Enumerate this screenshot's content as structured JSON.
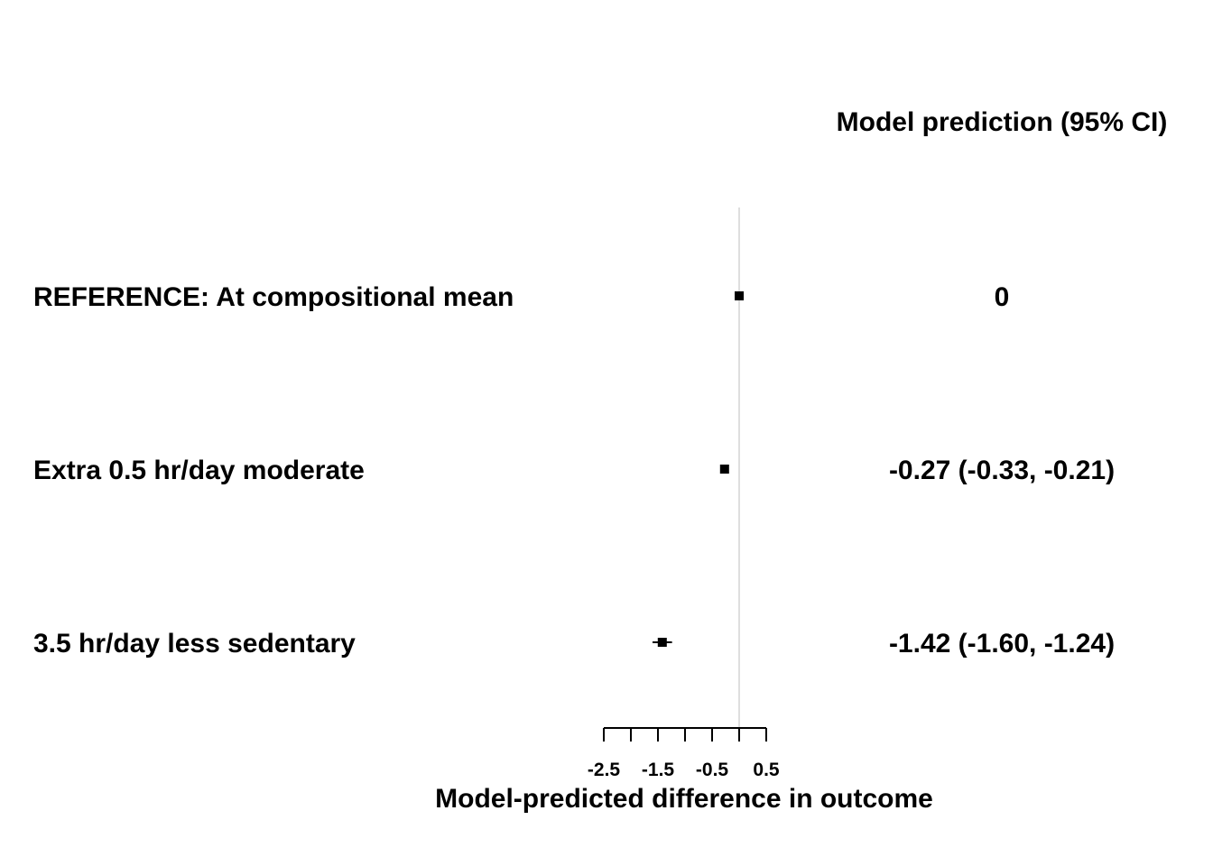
{
  "chart_data": {
    "type": "forest",
    "column_header": "Model prediction (95% CI)",
    "xlabel": "Model-predicted difference in outcome",
    "xlim": [
      -2.5,
      0.5
    ],
    "minor_tick_step": 0.5,
    "tick_labels": [
      "-2.5",
      "-1.5",
      "-0.5",
      "0.5"
    ],
    "reference_line_x": 0,
    "rows": [
      {
        "label": "REFERENCE: At compositional mean",
        "estimate": 0,
        "lower": 0,
        "upper": 0,
        "ci_text": "0"
      },
      {
        "label": "Extra 0.5 hr/day moderate",
        "estimate": -0.27,
        "lower": -0.33,
        "upper": -0.21,
        "ci_text": "-0.27 (-0.33, -0.21)"
      },
      {
        "label": "3.5 hr/day less sedentary",
        "estimate": -1.42,
        "lower": -1.6,
        "upper": -1.24,
        "ci_text": "-1.42 (-1.60, -1.24)"
      }
    ],
    "colors": {
      "marker": "#000000",
      "reference_line": "#d3d3d3",
      "text": "#000000"
    }
  }
}
